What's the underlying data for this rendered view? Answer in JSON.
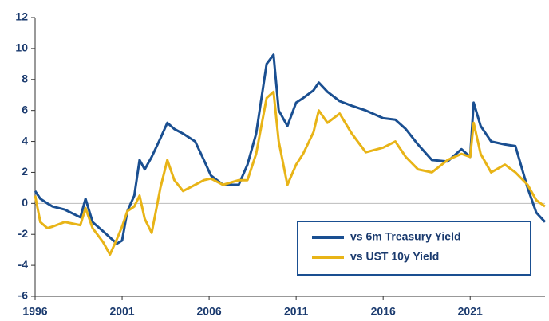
{
  "chart_data": {
    "type": "line",
    "x": [
      1996,
      1996.3,
      1996.7,
      1997,
      1997.7,
      1998.6,
      1998.9,
      1999.3,
      1999.9,
      2000.3,
      2000.7,
      2001,
      2001.3,
      2001.7,
      2002,
      2002.3,
      2002.7,
      2003.2,
      2003.6,
      2004,
      2004.5,
      2005.2,
      2005.7,
      2006.1,
      2006.8,
      2007.7,
      2008.2,
      2008.7,
      2009.3,
      2009.7,
      2010,
      2010.5,
      2011,
      2011.4,
      2012,
      2012.3,
      2012.8,
      2013.5,
      2014.2,
      2015,
      2016,
      2016.7,
      2017.3,
      2018,
      2018.8,
      2019.7,
      2020.5,
      2021,
      2021.2,
      2021.6,
      2022.2,
      2023,
      2023.6,
      2024.3,
      2024.8,
      2025.3
    ],
    "series": [
      {
        "name": "vs 6m Treasury Yield",
        "color": "#1a4f91",
        "values": [
          0.8,
          0.3,
          0,
          -0.2,
          -0.4,
          -0.9,
          0.3,
          -1.2,
          -1.8,
          -2.2,
          -2.6,
          -2.4,
          -0.5,
          0.5,
          2.8,
          2.2,
          3.0,
          4.2,
          5.2,
          4.8,
          4.5,
          4.0,
          2.8,
          1.8,
          1.2,
          1.2,
          2.5,
          4.5,
          9.0,
          9.6,
          6.0,
          5.0,
          6.5,
          6.8,
          7.3,
          7.8,
          7.2,
          6.6,
          6.3,
          6.0,
          5.5,
          5.4,
          4.8,
          3.8,
          2.8,
          2.7,
          3.5,
          3.0,
          6.5,
          5.0,
          4.0,
          3.8,
          3.7,
          1.0,
          -0.6,
          -1.2
        ]
      },
      {
        "name": "vs UST 10y Yield",
        "color": "#e8b417",
        "values": [
          0.5,
          -1.2,
          -1.6,
          -1.5,
          -1.2,
          -1.4,
          -0.3,
          -1.6,
          -2.5,
          -3.3,
          -2.3,
          -1.5,
          -0.5,
          -0.2,
          0.5,
          -1.0,
          -1.9,
          1.0,
          2.8,
          1.5,
          0.8,
          1.2,
          1.5,
          1.6,
          1.2,
          1.5,
          1.5,
          3.2,
          6.8,
          7.2,
          4.0,
          1.2,
          2.5,
          3.2,
          4.6,
          6.0,
          5.2,
          5.8,
          4.5,
          3.3,
          3.6,
          4.0,
          3.0,
          2.2,
          2.0,
          2.8,
          3.2,
          3.0,
          5.2,
          3.2,
          2.0,
          2.5,
          2.0,
          1.2,
          0.2,
          -0.2
        ]
      }
    ],
    "xlim": [
      1996,
      2025.3
    ],
    "xticks": [
      1996,
      2001,
      2006,
      2011,
      2016,
      2021
    ],
    "ylim": [
      -6,
      12
    ],
    "yticks": [
      -6,
      -4,
      -2,
      0,
      2,
      4,
      6,
      8,
      10,
      12
    ],
    "zero_line": true,
    "legend": "lower right"
  }
}
